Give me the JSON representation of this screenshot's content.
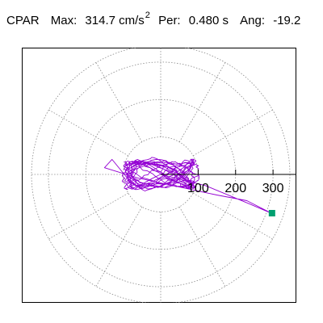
{
  "header": {
    "station": "CPAR",
    "max_label": "Max:",
    "max_value": "314.7 cm/s",
    "max_exp": "2",
    "per_label": "Per:",
    "per_value": "0.480 s",
    "ang_label": "Ang:",
    "ang_value": "-19.2"
  },
  "chart_data": {
    "type": "line",
    "projection": "polar",
    "title": "CPAR Max: 314.7 cm/s2 Per: 0.480 s Ang: -19.2",
    "radial_ticks": [
      100,
      200,
      300
    ],
    "radial_tick_labels": [
      "100",
      "200",
      "300"
    ],
    "rmax": 345,
    "angular_gridlines_deg": [
      0,
      30,
      60,
      90,
      120,
      150,
      180,
      210,
      240,
      270,
      300,
      330
    ],
    "grid": true,
    "series": [
      {
        "color": "#9400d3",
        "description_points_xy": [
          [
            0,
            0
          ],
          [
            40,
            25
          ],
          [
            -60,
            -40
          ],
          [
            120,
            30
          ],
          [
            -150,
            10
          ],
          [
            -20,
            -60
          ],
          [
            80,
            -45
          ],
          [
            -100,
            60
          ],
          [
            150,
            -20
          ],
          [
            -40,
            30
          ]
        ],
        "max_point": {
          "radius": 314.7,
          "angle_deg": -19.2
        }
      }
    ],
    "marker": {
      "color": "#00a070",
      "radius": 314.7,
      "angle_deg": -19.2
    }
  }
}
